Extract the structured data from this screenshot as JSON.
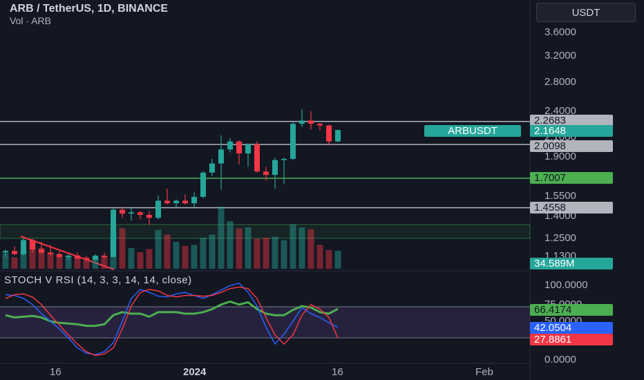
{
  "header": {
    "title": "ARB / TetherUS, 1D, BINANCE",
    "subtitle": "Vol · ARB",
    "currency_button": "USDT"
  },
  "price_axis": {
    "labels": [
      "3.6000",
      "3.2000",
      "2.8000",
      "2.4000",
      "2.1000",
      "1.9000",
      "1.5500",
      "1.4000",
      "1.2500",
      "1.1300"
    ]
  },
  "price_tags": {
    "resistance_top": "2.2683",
    "last_price_symbol": "ARBUSDT",
    "last_price": "2.1648",
    "resistance_mid": "2.0098",
    "support_green": "1.7007",
    "support_low": "1.4558",
    "volume": "34.589M"
  },
  "indicator": {
    "title": "STOCH V RSI (14, 3, 3, 14, 14, close)",
    "axis_labels": [
      "100.0000",
      "75.0000",
      "50.0000",
      "0.0000"
    ],
    "value_rsi": "66.4174",
    "value_k": "42.0504",
    "value_d": "27.8861"
  },
  "time_axis": {
    "labels": [
      "16",
      "2024",
      "16",
      "Feb"
    ]
  },
  "colors": {
    "background": "#131722",
    "up": "#26a69a",
    "down": "#f23645",
    "rsi": "#4caf50",
    "k": "#2962ff",
    "d": "#f23645"
  },
  "chart_data": {
    "type": "candlestick",
    "title": "ARB / TetherUS, 1D, BINANCE",
    "candles": [
      {
        "o": 1.15,
        "h": 1.17,
        "l": 1.12,
        "c": 1.16
      },
      {
        "o": 1.16,
        "h": 1.19,
        "l": 1.13,
        "c": 1.14
      },
      {
        "o": 1.14,
        "h": 1.24,
        "l": 1.13,
        "c": 1.23
      },
      {
        "o": 1.23,
        "h": 1.24,
        "l": 1.15,
        "c": 1.17
      },
      {
        "o": 1.17,
        "h": 1.22,
        "l": 1.14,
        "c": 1.15
      },
      {
        "o": 1.15,
        "h": 1.2,
        "l": 1.13,
        "c": 1.14
      },
      {
        "o": 1.14,
        "h": 1.16,
        "l": 1.11,
        "c": 1.12
      },
      {
        "o": 1.12,
        "h": 1.14,
        "l": 1.1,
        "c": 1.13
      },
      {
        "o": 1.13,
        "h": 1.15,
        "l": 1.1,
        "c": 1.11
      },
      {
        "o": 1.11,
        "h": 1.13,
        "l": 1.09,
        "c": 1.1
      },
      {
        "o": 1.1,
        "h": 1.14,
        "l": 1.09,
        "c": 1.13
      },
      {
        "o": 1.13,
        "h": 1.15,
        "l": 1.11,
        "c": 1.12
      },
      {
        "o": 1.12,
        "h": 1.45,
        "l": 1.12,
        "c": 1.44
      },
      {
        "o": 1.44,
        "h": 1.46,
        "l": 1.38,
        "c": 1.41
      },
      {
        "o": 1.41,
        "h": 1.46,
        "l": 1.36,
        "c": 1.42
      },
      {
        "o": 1.42,
        "h": 1.43,
        "l": 1.37,
        "c": 1.4
      },
      {
        "o": 1.4,
        "h": 1.43,
        "l": 1.33,
        "c": 1.38
      },
      {
        "o": 1.38,
        "h": 1.55,
        "l": 1.37,
        "c": 1.51
      },
      {
        "o": 1.51,
        "h": 1.61,
        "l": 1.48,
        "c": 1.49
      },
      {
        "o": 1.49,
        "h": 1.52,
        "l": 1.46,
        "c": 1.51
      },
      {
        "o": 1.51,
        "h": 1.56,
        "l": 1.48,
        "c": 1.49
      },
      {
        "o": 1.49,
        "h": 1.58,
        "l": 1.46,
        "c": 1.54
      },
      {
        "o": 1.54,
        "h": 1.76,
        "l": 1.53,
        "c": 1.75
      },
      {
        "o": 1.75,
        "h": 1.87,
        "l": 1.72,
        "c": 1.83
      },
      {
        "o": 1.83,
        "h": 2.1,
        "l": 1.6,
        "c": 1.96
      },
      {
        "o": 1.96,
        "h": 2.07,
        "l": 1.93,
        "c": 2.04
      },
      {
        "o": 2.04,
        "h": 2.05,
        "l": 1.82,
        "c": 1.92
      },
      {
        "o": 1.92,
        "h": 2.02,
        "l": 1.8,
        "c": 2.01
      },
      {
        "o": 2.01,
        "h": 2.04,
        "l": 1.75,
        "c": 1.76
      },
      {
        "o": 1.76,
        "h": 1.8,
        "l": 1.68,
        "c": 1.73
      },
      {
        "o": 1.73,
        "h": 1.88,
        "l": 1.61,
        "c": 1.86
      },
      {
        "o": 1.86,
        "h": 1.88,
        "l": 1.65,
        "c": 1.87
      },
      {
        "o": 1.87,
        "h": 2.26,
        "l": 1.86,
        "c": 2.24
      },
      {
        "o": 2.24,
        "h": 2.42,
        "l": 2.2,
        "c": 2.28
      },
      {
        "o": 2.28,
        "h": 2.39,
        "l": 2.17,
        "c": 2.24
      },
      {
        "o": 2.24,
        "h": 2.25,
        "l": 2.16,
        "c": 2.22
      },
      {
        "o": 2.22,
        "h": 2.23,
        "l": 2.0,
        "c": 2.04
      },
      {
        "o": 2.04,
        "h": 2.17,
        "l": 2.03,
        "c": 2.1648
      }
    ],
    "volume": [
      30,
      22,
      35,
      55,
      40,
      30,
      28,
      25,
      26,
      22,
      20,
      24,
      70,
      78,
      40,
      32,
      38,
      75,
      66,
      52,
      44,
      46,
      60,
      66,
      120,
      92,
      78,
      80,
      58,
      60,
      62,
      55,
      86,
      80,
      76,
      46,
      36,
      34.589
    ],
    "horizontal_levels": [
      2.2683,
      2.0098,
      1.7007,
      1.4558
    ],
    "stoch_rsi": {
      "k": [
        85,
        84,
        80,
        72,
        60,
        50,
        40,
        28,
        15,
        8,
        6,
        10,
        22,
        50,
        80,
        92,
        88,
        83,
        82,
        86,
        88,
        84,
        80,
        85,
        91,
        97,
        100,
        88,
        70,
        42,
        20,
        33,
        50,
        68,
        60,
        55,
        48,
        42.0504
      ],
      "d": [
        80,
        85,
        86,
        82,
        72,
        58,
        45,
        32,
        20,
        10,
        5,
        7,
        15,
        40,
        70,
        88,
        92,
        90,
        84,
        82,
        84,
        84,
        83,
        84,
        88,
        93,
        95,
        93,
        80,
        55,
        32,
        20,
        32,
        58,
        72,
        66,
        55,
        27.8861
      ],
      "rsi": [
        58,
        55,
        56,
        57,
        55,
        50,
        48,
        47,
        46,
        44,
        44,
        46,
        58,
        62,
        60,
        60,
        56,
        62,
        62,
        62,
        60,
        60,
        62,
        66,
        72,
        76,
        72,
        75,
        66,
        60,
        58,
        58,
        65,
        70,
        68,
        62,
        60,
        66.4174
      ]
    }
  }
}
